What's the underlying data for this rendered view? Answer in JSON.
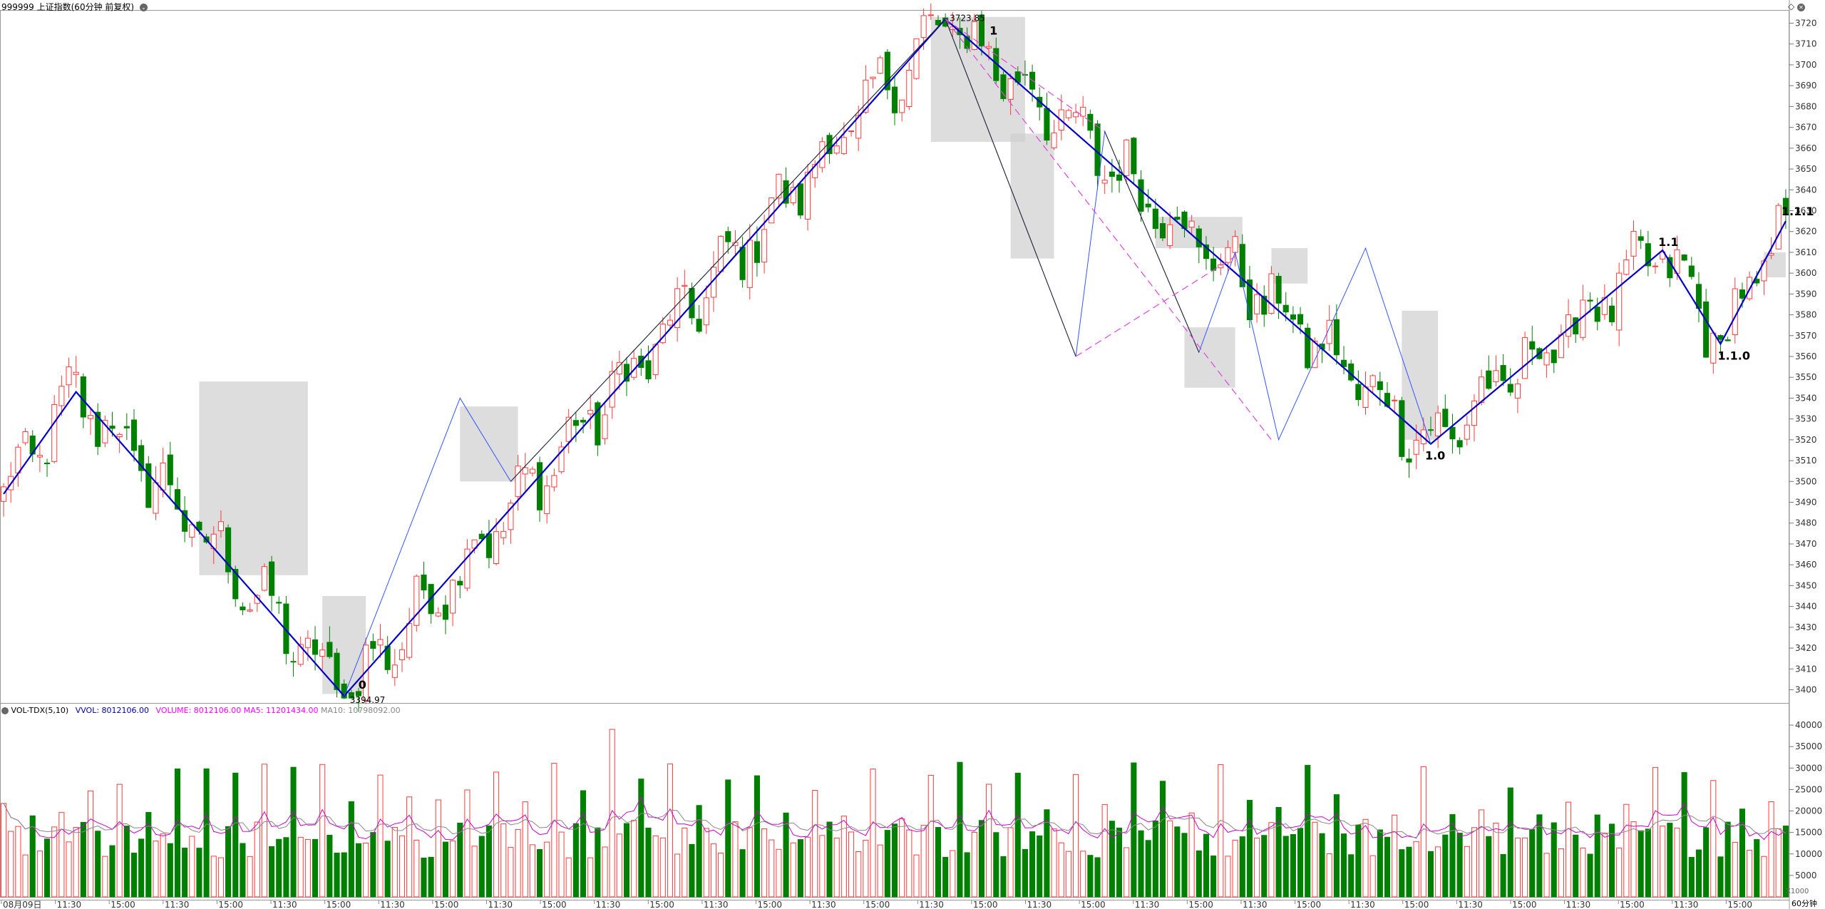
{
  "header": {
    "symbol_title": "999999 上证指数(60分钟 前复权)",
    "corner_icons": [
      "diamond-icon",
      "close-icon"
    ]
  },
  "volume_header": {
    "indicator": "VOL-TDX(5,10)",
    "vvol": "VVOL: 8012106.00",
    "volume": "VOLUME: 8012106.00",
    "ma5": "MA5: 11201434.00",
    "ma10": "MA10: 10798092.00"
  },
  "footer": {
    "multiplier": "X1000",
    "period": "60分钟"
  },
  "colors": {
    "up": "#ff3b3b",
    "down": "#008000",
    "wave_main": "#0000cc",
    "wave_minor": "#3355ff",
    "dashed": "#dd44dd",
    "ma5": "#cc00cc",
    "ma10": "#888888"
  },
  "chart_data": [
    {
      "type": "candlestick",
      "ylim": [
        3394,
        3726
      ],
      "y_ticks": [
        3400,
        3410,
        3420,
        3430,
        3440,
        3450,
        3460,
        3470,
        3480,
        3490,
        3500,
        3510,
        3520,
        3530,
        3540,
        3550,
        3560,
        3570,
        3580,
        3590,
        3600,
        3610,
        3620,
        3630,
        3640,
        3650,
        3660,
        3670,
        3680,
        3690,
        3700,
        3710,
        3720
      ],
      "x_labels": [
        "08月09日",
        "11:30",
        "15:00",
        "11:30",
        "15:00",
        "11:30",
        "15:00",
        "11:30",
        "15:00",
        "11:30",
        "15:00",
        "11:30",
        "15:00",
        "11:30",
        "15:00",
        "11:30",
        "15:00",
        "11:30",
        "15:00",
        "11:30",
        "15:00",
        "11:30",
        "15:00",
        "11:30",
        "15:00",
        "11:30",
        "15:00",
        "11:30",
        "15:00",
        "11:30",
        "15:00",
        "11:30",
        "15:00"
      ],
      "annotations": {
        "high_value": "3723.85",
        "low_value": "3394.97",
        "wave_labels": [
          "0",
          "1",
          "1.0",
          "1.1",
          "1.1.0",
          "1.1.1"
        ]
      },
      "anchors": [
        [
          0,
          3494
        ],
        [
          10,
          3543
        ],
        [
          47,
          3397
        ],
        [
          92,
          3722
        ],
        [
          155,
          3518
        ],
        [
          170,
          3611
        ],
        [
          182,
          3566
        ],
        [
          187,
          3622
        ],
        [
          196,
          3600
        ]
      ],
      "main_wave_points": [
        [
          0,
          3494
        ],
        [
          10,
          3543
        ],
        [
          47,
          3397
        ],
        [
          130,
          3722
        ],
        [
          197,
          3518
        ],
        [
          229,
          3611
        ],
        [
          237,
          3566
        ],
        [
          246,
          3625
        ]
      ]
    },
    {
      "type": "bar",
      "name": "VOL-TDX",
      "ylim": [
        0,
        42000
      ],
      "y_ticks": [
        5000,
        10000,
        15000,
        20000,
        25000,
        30000,
        35000,
        40000
      ],
      "values_note_unit": "X1000",
      "last_values": {
        "volume": 8012106.0,
        "ma5": 11201434.0,
        "ma10": 10798092.0
      }
    }
  ]
}
